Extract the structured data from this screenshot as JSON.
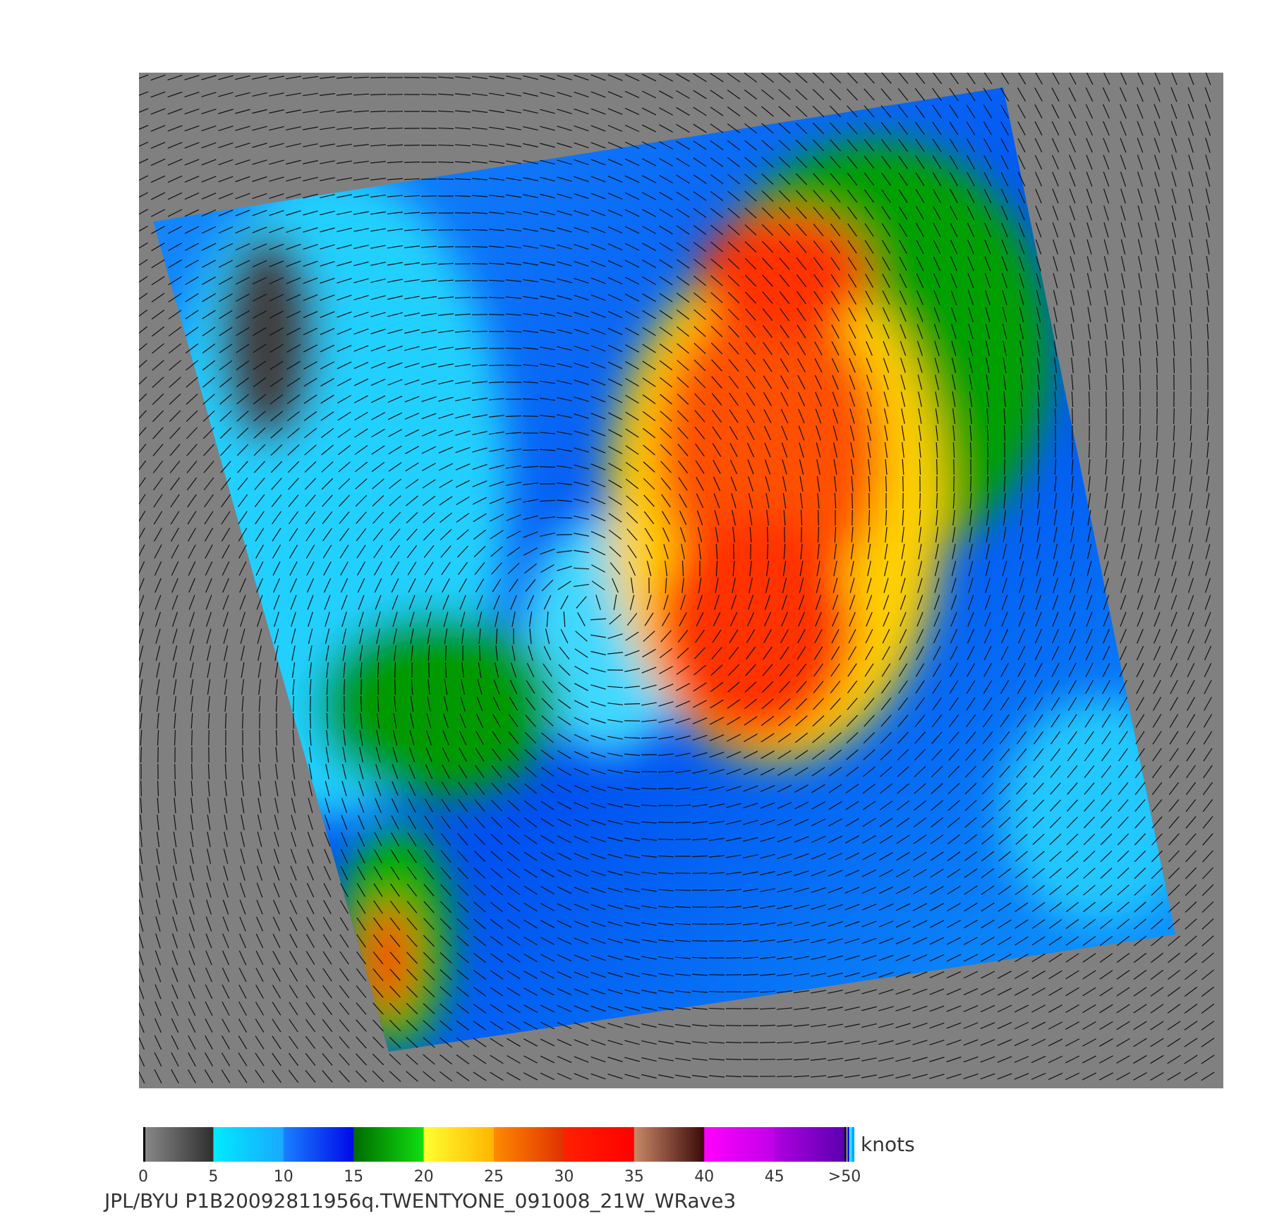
{
  "colorbar": {
    "unit": "knots",
    "ticks": [
      0,
      5,
      10,
      15,
      20,
      25,
      30,
      35,
      40,
      45,
      {
        "value": 50,
        "label": ">50"
      }
    ],
    "bands": [
      {
        "range": [
          0,
          5
        ],
        "colors": [
          "#8a8a8a",
          "#2e2e2e"
        ]
      },
      {
        "range": [
          5,
          10
        ],
        "colors": [
          "#00eaff",
          "#1aa8ff"
        ]
      },
      {
        "range": [
          10,
          15
        ],
        "colors": [
          "#1a80ff",
          "#0008e8"
        ]
      },
      {
        "range": [
          15,
          20
        ],
        "colors": [
          "#006a00",
          "#10e010"
        ]
      },
      {
        "range": [
          20,
          25
        ],
        "colors": [
          "#ffff30",
          "#ffb400"
        ]
      },
      {
        "range": [
          25,
          30
        ],
        "colors": [
          "#ff8a00",
          "#e03000"
        ]
      },
      {
        "range": [
          30,
          35
        ],
        "colors": [
          "#ff2000",
          "#ff0000"
        ]
      },
      {
        "range": [
          35,
          40
        ],
        "colors": [
          "#c88868",
          "#3a0a08"
        ]
      },
      {
        "range": [
          40,
          45
        ],
        "colors": [
          "#ff00ff",
          "#c000e8"
        ]
      },
      {
        "range": [
          45,
          50
        ],
        "colors": [
          "#b000e0",
          "#5a00b0"
        ]
      }
    ]
  },
  "footer": "JPL/BYU  P1B20092811956q.TWENTYONE_091008_21W_WRave3"
}
